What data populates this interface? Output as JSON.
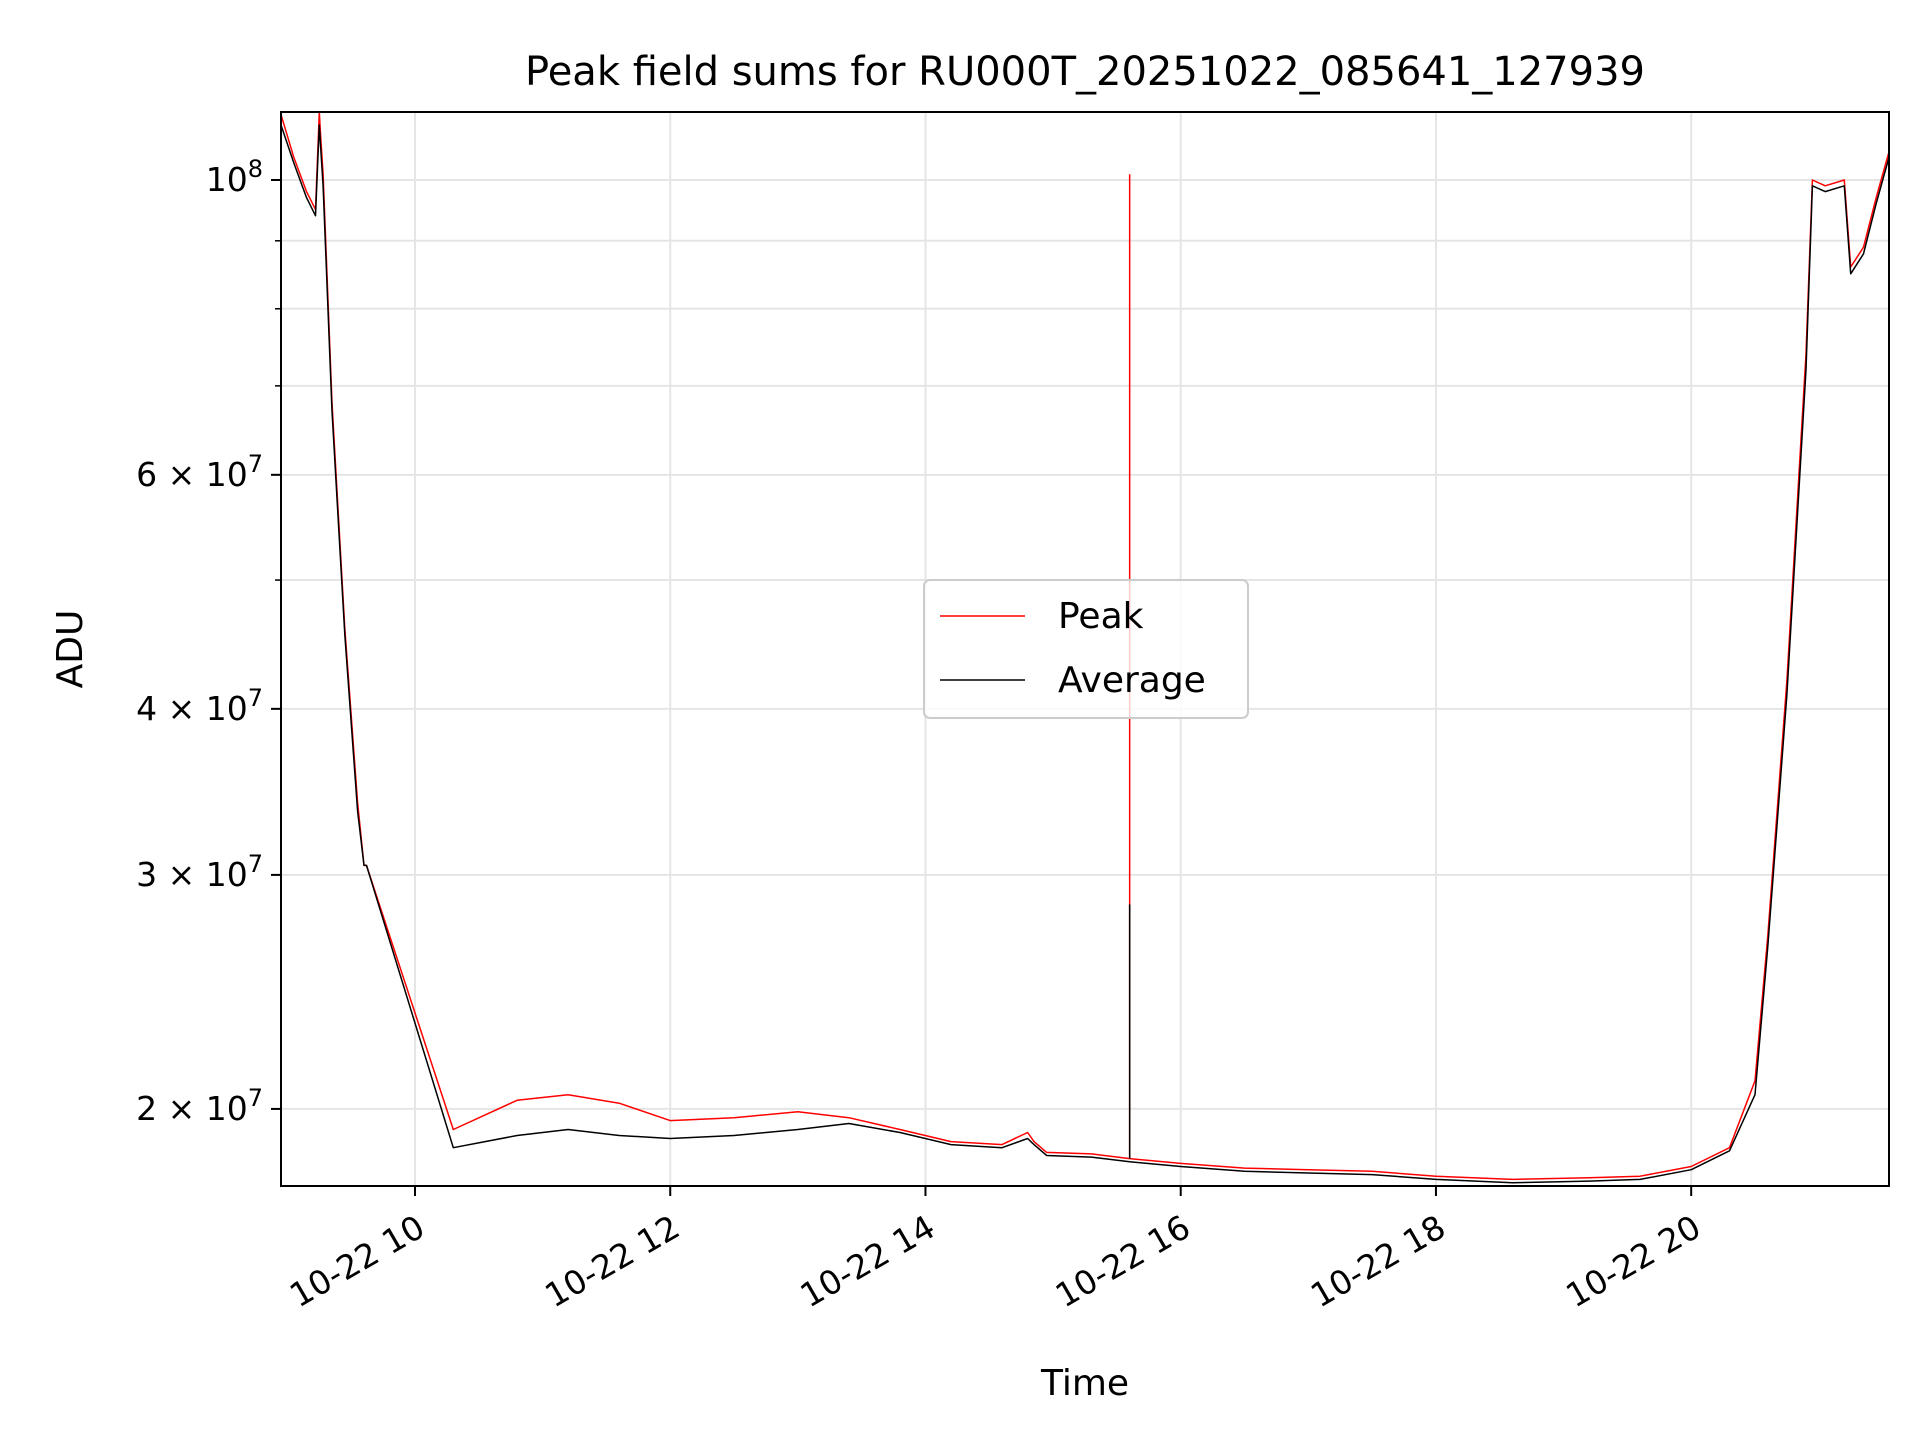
{
  "chart_data": {
    "type": "line",
    "title": "Peak field sums for RU000T_20251022_085641_127939",
    "xlabel": "Time",
    "ylabel": "ADU",
    "yscale": "log",
    "grid": true,
    "legend_position": "center",
    "xlim": [
      8.95,
      21.55
    ],
    "ylim": [
      17500000,
      112500000
    ],
    "x_ticks": [
      {
        "value": 10,
        "label": "10-22 10"
      },
      {
        "value": 12,
        "label": "10-22 12"
      },
      {
        "value": 14,
        "label": "10-22 14"
      },
      {
        "value": 16,
        "label": "10-22 16"
      },
      {
        "value": 18,
        "label": "10-22 18"
      },
      {
        "value": 20,
        "label": "10-22 20"
      }
    ],
    "y_ticks": [
      {
        "value": 20000000,
        "base": "2",
        "exp": "7"
      },
      {
        "value": 30000000,
        "base": "3",
        "exp": "7"
      },
      {
        "value": 40000000,
        "base": "4",
        "exp": "7"
      },
      {
        "value": 60000000,
        "base": "6",
        "exp": "7"
      },
      {
        "value": 100000000,
        "base": "",
        "exp": "8"
      }
    ],
    "y_minor_ticks": [
      50000000,
      70000000,
      80000000,
      90000000
    ],
    "times_hours": [
      8.95,
      9.05,
      9.15,
      9.22,
      9.25,
      9.26,
      9.28,
      9.35,
      9.45,
      9.55,
      9.6,
      9.62,
      10.3,
      10.8,
      11.2,
      11.6,
      12.0,
      12.5,
      13.0,
      13.4,
      13.8,
      14.2,
      14.6,
      14.8,
      14.85,
      14.95,
      15.3,
      15.6,
      16.0,
      16.5,
      17.0,
      17.5,
      18.0,
      18.6,
      19.2,
      19.6,
      20.0,
      20.3,
      20.5,
      20.6,
      20.75,
      20.9,
      20.95,
      21.05,
      21.2,
      21.25,
      21.35,
      21.45,
      21.55
    ],
    "series": [
      {
        "name": "Peak",
        "color": "#ff0000",
        "values": [
          112000000,
          104000000,
          98000000,
          95000000,
          112500000,
          108000000,
          101000000,
          68000000,
          46000000,
          34000000,
          30500000,
          30500000,
          19300000,
          20300000,
          20500000,
          20200000,
          19600000,
          19700000,
          19900000,
          19700000,
          19300000,
          18900000,
          18800000,
          19200000,
          18900000,
          18550000,
          18500000,
          18350000,
          18200000,
          18050000,
          18000000,
          17950000,
          17800000,
          17700000,
          17750000,
          17800000,
          18100000,
          18700000,
          21000000,
          27000000,
          42000000,
          74000000,
          100000000,
          99000000,
          100000000,
          86000000,
          89000000,
          97000000,
          105000000
        ]
      },
      {
        "name": "Average",
        "color": "#000000",
        "values": [
          110000000,
          103000000,
          97000000,
          94000000,
          110000000,
          106000000,
          99000000,
          67000000,
          45500000,
          33500000,
          30500000,
          30500000,
          18700000,
          19100000,
          19300000,
          19100000,
          19000000,
          19100000,
          19300000,
          19500000,
          19200000,
          18800000,
          18700000,
          19000000,
          18800000,
          18450000,
          18400000,
          18250000,
          18100000,
          17950000,
          17900000,
          17850000,
          17700000,
          17600000,
          17650000,
          17700000,
          18000000,
          18600000,
          20500000,
          26500000,
          41000000,
          72000000,
          99000000,
          98000000,
          99000000,
          85000000,
          88000000,
          96000000,
          104000000
        ]
      }
    ],
    "spike": {
      "time": 15.6,
      "peak_value": 101000000,
      "average_value": 28500000
    }
  }
}
